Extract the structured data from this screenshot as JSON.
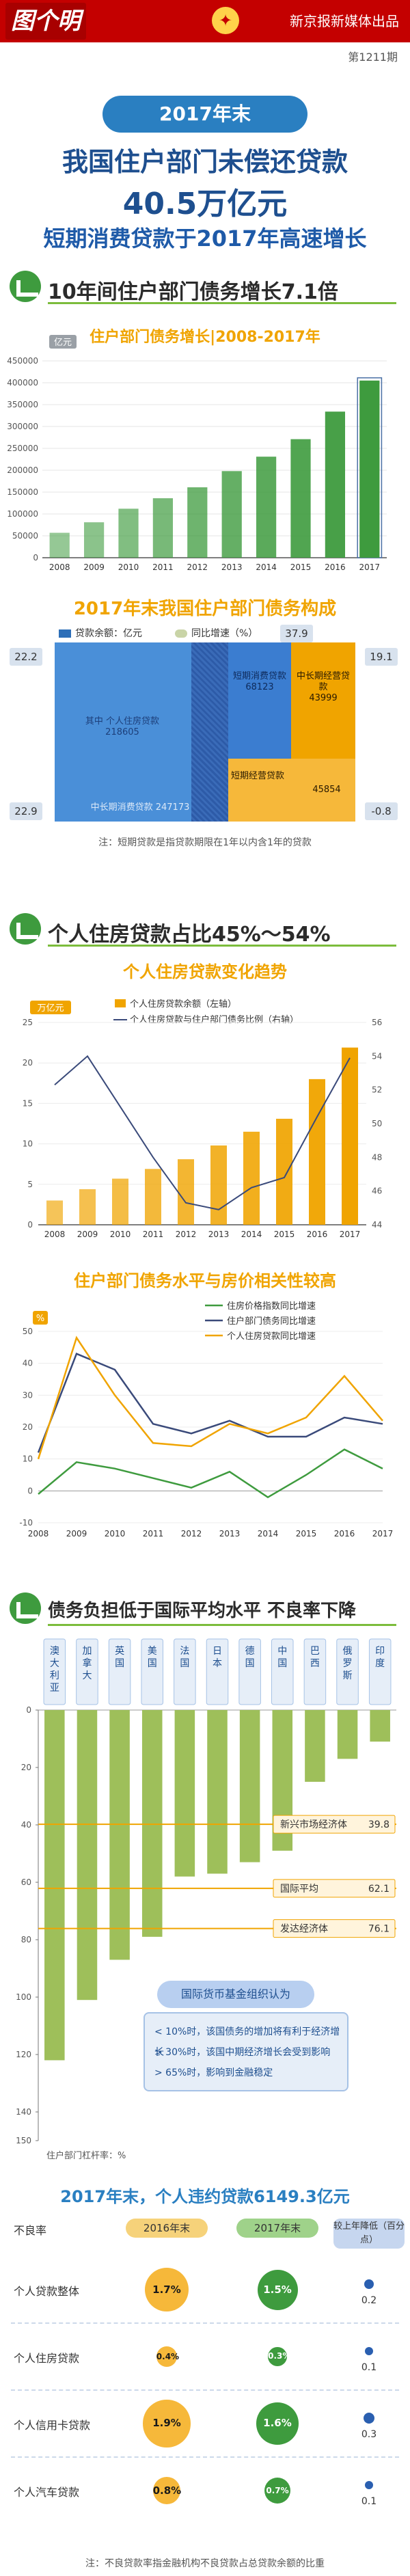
{
  "header": {
    "logo_text": "图个明白",
    "brand_right": "新京报新媒体出品",
    "issue": "第1211期"
  },
  "hero": {
    "tag": "2017年末",
    "line1": "我国住户部门未偿还贷款",
    "line2": "40.5万亿元",
    "line3": "短期消费贷款于2017年高速增长"
  },
  "section1": {
    "title": "10年间住户部门债务增长7.1倍"
  },
  "section2": {
    "title": "个人住房贷款占比45%～54%"
  },
  "section3": {
    "title": "债务负担低于国际平均水平 不良率下降"
  },
  "mosaic": {
    "title": "2017年末我国住户部门债务构成",
    "legend_balance": "贷款余额：亿元",
    "legend_growth": "同比增速（%）",
    "housing_label": "其中  个人住房贷款",
    "housing_value": "218605",
    "medium_long_label": "中长期消费贷款  247173",
    "short_cons_label": "短期消费贷款",
    "short_cons_value": "68123",
    "ml_op_label": "中长期经营贷款",
    "ml_op_value": "43999",
    "short_op_label": "短期经营贷款",
    "short_op_value": "45854",
    "left_top": "22.2",
    "left_bottom": "22.9",
    "top_right": "37.9",
    "right_top": "19.1",
    "right_bottom": "-0.8",
    "note": "注：短期贷款是指贷款期限在1年以内含1年的贷款"
  },
  "chart_data": [
    {
      "type": "bar",
      "title": "住户部门债务增长|2008-2017年",
      "ylabel": "亿元",
      "categories": [
        "2008",
        "2009",
        "2010",
        "2011",
        "2012",
        "2013",
        "2014",
        "2015",
        "2016",
        "2017"
      ],
      "values": [
        57000,
        81000,
        112000,
        136000,
        161000,
        198000,
        231000,
        271000,
        334000,
        405000
      ],
      "ylim": [
        0,
        450000
      ],
      "yticks": [
        "0",
        "50000",
        "100000",
        "150000",
        "200000",
        "250000",
        "300000",
        "350000",
        "400000",
        "450000"
      ],
      "colors": {
        "bar": "#3e9b3e",
        "highlight": "#3e9b3e"
      }
    },
    {
      "type": "bar",
      "title": "个人住房贷款变化趋势",
      "ylabel": "万亿元",
      "categories": [
        "2008",
        "2009",
        "2010",
        "2011",
        "2012",
        "2013",
        "2014",
        "2015",
        "2016",
        "2017"
      ],
      "series": [
        {
          "name": "个人住房贷款余额（左轴）",
          "values": [
            3.0,
            4.4,
            5.7,
            6.9,
            8.1,
            9.8,
            11.5,
            13.1,
            18.0,
            21.9
          ]
        },
        {
          "name": "个人住房贷款与住户部门债务比例（右轴）",
          "values": [
            52.3,
            54.0,
            51.0,
            48.0,
            45.3,
            44.9,
            46.2,
            46.8,
            50.4,
            53.9
          ]
        }
      ],
      "ylim": [
        0,
        25
      ],
      "y2lim": [
        44,
        56
      ],
      "yticks": [
        "0",
        "5",
        "10",
        "15",
        "20",
        "25"
      ],
      "y2ticks": [
        "44",
        "46",
        "48",
        "50",
        "52",
        "54",
        "56"
      ],
      "colors": {
        "bar": "#f0a400",
        "line": "#3a4a7a"
      }
    },
    {
      "type": "line",
      "title": "住户部门债务水平与房价相关性较高",
      "ylabel": "%",
      "categories": [
        "2008",
        "2009",
        "2010",
        "2011",
        "2012",
        "2013",
        "2014",
        "2015",
        "2016",
        "2017"
      ],
      "series": [
        {
          "name": "住房价格指数同比增速",
          "values": [
            -1,
            9,
            7,
            4,
            1,
            6,
            -2,
            5,
            13,
            7
          ]
        },
        {
          "name": "住户部门债务同比增速",
          "values": [
            12,
            43,
            38,
            21,
            18,
            22,
            17,
            17,
            23,
            21
          ]
        },
        {
          "name": "个人住房贷款同比增速",
          "values": [
            10,
            48,
            30,
            15,
            14,
            21,
            18,
            23,
            36,
            22
          ]
        }
      ],
      "ylim": [
        -10,
        50
      ],
      "yticks": [
        "-10",
        "0",
        "10",
        "20",
        "30",
        "40",
        "50"
      ],
      "colors": {
        "s1": "#3e9b3e",
        "s2": "#3a4a7a",
        "s3": "#f0a400"
      }
    },
    {
      "type": "bar",
      "title": "住户部门杠杆率：%",
      "categories": [
        "澳大利亚",
        "加拿大",
        "英国",
        "美国",
        "法国",
        "日本",
        "德国",
        "中国",
        "巴西",
        "俄罗斯",
        "印度"
      ],
      "values": [
        122,
        101,
        87,
        79,
        58,
        57,
        53,
        49,
        25,
        17,
        11
      ],
      "ylim": [
        0,
        150
      ],
      "yticks": [
        "0",
        "20",
        "40",
        "60",
        "80",
        "100",
        "120",
        "140",
        "150"
      ],
      "reference_lines": [
        {
          "name": "新兴市场经济体",
          "value": 39.8
        },
        {
          "name": "国际平均",
          "value": 62.1
        },
        {
          "name": "发达经济体",
          "value": 76.1
        }
      ],
      "colors": {
        "bar": "#9ebf5a",
        "ref": "#f0a400"
      }
    }
  ],
  "imf": {
    "tag": "国际货币基金组织认为",
    "lines": [
      "< 10%时，该国债务的增加将有利于经济增长",
      "> 30%时，该国中期经济增长会受到影响",
      "> 65%时，影响到金融稳定"
    ]
  },
  "npl": {
    "title": "2017年末，个人违约贷款6149.3亿元",
    "col_label": "不良率",
    "col_2016": "2016年末",
    "col_2017": "2017年末",
    "col_drop": "较上年降低（百分点）",
    "rows": [
      {
        "label": "个人贷款整体",
        "v2016": "1.7%",
        "v2017": "1.5%",
        "drop": "0.2"
      },
      {
        "label": "个人住房贷款",
        "v2016": "0.4%",
        "v2017": "0.3%",
        "drop": "0.1"
      },
      {
        "label": "个人信用卡贷款",
        "v2016": "1.9%",
        "v2017": "1.6%",
        "drop": "0.3"
      },
      {
        "label": "个人汽车贷款",
        "v2016": "0.8%",
        "v2017": "0.7%",
        "drop": "0.1"
      }
    ],
    "note": "注：不良贷款率指金融机构不良贷款占总贷款余额的比重"
  }
}
